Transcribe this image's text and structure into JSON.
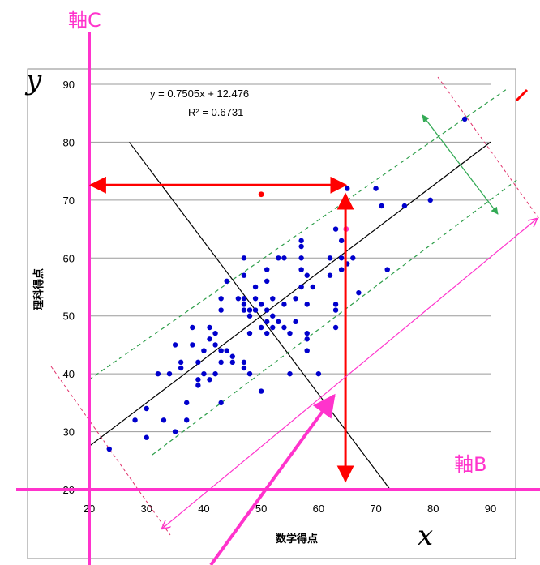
{
  "chart_data": {
    "type": "scatter",
    "xlabel": "数学得点",
    "ylabel": "理科得点",
    "xlim": [
      20,
      90
    ],
    "ylim": [
      20,
      90
    ],
    "xticks": [
      20,
      30,
      40,
      50,
      60,
      70,
      80,
      90
    ],
    "yticks": [
      20,
      30,
      40,
      50,
      60,
      70,
      80,
      90
    ],
    "grid": "horizontal",
    "equation": "y = 0.7505x + 12.476",
    "r_squared": "R² = 0.6731",
    "trendline": {
      "slope": 0.7505,
      "intercept": 12.476
    },
    "point_color": "#0000cc",
    "points": [
      [
        23.5,
        27
      ],
      [
        28,
        32
      ],
      [
        30,
        34
      ],
      [
        30,
        29
      ],
      [
        32,
        40
      ],
      [
        33,
        32
      ],
      [
        34,
        40
      ],
      [
        35,
        45
      ],
      [
        35,
        30
      ],
      [
        36,
        41
      ],
      [
        36,
        42
      ],
      [
        37,
        32
      ],
      [
        37,
        35
      ],
      [
        38,
        48
      ],
      [
        38,
        45
      ],
      [
        39,
        42
      ],
      [
        39,
        38
      ],
      [
        39,
        39
      ],
      [
        40,
        40
      ],
      [
        40,
        44
      ],
      [
        41,
        48
      ],
      [
        41,
        39
      ],
      [
        41,
        46
      ],
      [
        42,
        47
      ],
      [
        42,
        45
      ],
      [
        42,
        40
      ],
      [
        43,
        44
      ],
      [
        43,
        42
      ],
      [
        43,
        35
      ],
      [
        43,
        51
      ],
      [
        43,
        53
      ],
      [
        44,
        56
      ],
      [
        44,
        44
      ],
      [
        45,
        42
      ],
      [
        45,
        43
      ],
      [
        46,
        53
      ],
      [
        47,
        57
      ],
      [
        47,
        60
      ],
      [
        47,
        53
      ],
      [
        47,
        42
      ],
      [
        47,
        41
      ],
      [
        47,
        52
      ],
      [
        47,
        51
      ],
      [
        48,
        50
      ],
      [
        48,
        47
      ],
      [
        48,
        51
      ],
      [
        48,
        40
      ],
      [
        49,
        55
      ],
      [
        49,
        53
      ],
      [
        49,
        51
      ],
      [
        50,
        52
      ],
      [
        50,
        48
      ],
      [
        51,
        49
      ],
      [
        51,
        47
      ],
      [
        51,
        51
      ],
      [
        51,
        58
      ],
      [
        51,
        56
      ],
      [
        50,
        37
      ],
      [
        52,
        48
      ],
      [
        52,
        50
      ],
      [
        52,
        53
      ],
      [
        53,
        60
      ],
      [
        53,
        49
      ],
      [
        54,
        52
      ],
      [
        54,
        60
      ],
      [
        54,
        48
      ],
      [
        55,
        47
      ],
      [
        55,
        40
      ],
      [
        56,
        53
      ],
      [
        56,
        49
      ],
      [
        57,
        55
      ],
      [
        57,
        58
      ],
      [
        57,
        60
      ],
      [
        57,
        62
      ],
      [
        57,
        63
      ],
      [
        58,
        57
      ],
      [
        58,
        52
      ],
      [
        58,
        47
      ],
      [
        58,
        46
      ],
      [
        58,
        44
      ],
      [
        59,
        55
      ],
      [
        60,
        40
      ],
      [
        62,
        60
      ],
      [
        62,
        57
      ],
      [
        63,
        52
      ],
      [
        63,
        51
      ],
      [
        63,
        48
      ],
      [
        63,
        65
      ],
      [
        64,
        63
      ],
      [
        64,
        60
      ],
      [
        64,
        58
      ],
      [
        65,
        59
      ],
      [
        65,
        72
      ],
      [
        66,
        60
      ],
      [
        67,
        54
      ],
      [
        70,
        72
      ],
      [
        71,
        69
      ],
      [
        72,
        58
      ],
      [
        75,
        69
      ],
      [
        79.5,
        70
      ],
      [
        85.5,
        84
      ]
    ],
    "highlight_points": [
      {
        "x": 50,
        "y": 71,
        "color": "#ff0000"
      },
      {
        "x": 64.8,
        "y": 65,
        "color": "#ff33cc"
      }
    ]
  },
  "annotations": {
    "axis_b_label": "軸B",
    "axis_c_label": "軸C",
    "x_var": "x",
    "y_var": "y"
  },
  "colors": {
    "magenta": "#ff33cc",
    "red": "#ff0000",
    "green": "#33aa55",
    "dash_green": "#2e9e4a",
    "dash_pink": "#e0306a"
  }
}
